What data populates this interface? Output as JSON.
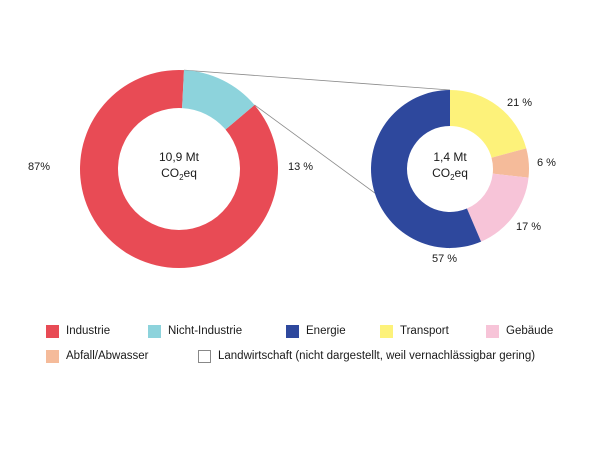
{
  "chart_data": [
    {
      "type": "pie",
      "variant": "donut",
      "center_label": {
        "line1": "10,9 Mt",
        "line2_main": "CO",
        "line2_sub": "2",
        "line2_tail": "eq"
      },
      "slices": [
        {
          "name": "Industrie",
          "value": 87,
          "label": "87%",
          "color": "#e84b55"
        },
        {
          "name": "Nicht-Industrie",
          "value": 13,
          "label": "13 %",
          "color": "#8dd3dc"
        }
      ]
    },
    {
      "type": "pie",
      "variant": "donut",
      "center_label": {
        "line1": "1,4 Mt",
        "line2_main": "CO",
        "line2_sub": "2",
        "line2_tail": "eq"
      },
      "slices": [
        {
          "name": "Transport",
          "value": 21,
          "label": "21 %",
          "color": "#fdf27a"
        },
        {
          "name": "Abfall/Abwasser",
          "value": 6,
          "label": "6 %",
          "color": "#f5bb9a"
        },
        {
          "name": "Gebäude",
          "value": 17,
          "label": "17 %",
          "color": "#f7c4d8"
        },
        {
          "name": "Energie",
          "value": 57,
          "label": "57 %",
          "color": "#2e489d"
        }
      ]
    }
  ],
  "legend": {
    "rows": [
      [
        {
          "label": "Industrie",
          "color": "#e84b55"
        },
        {
          "label": "Nicht-Industrie",
          "color": "#8dd3dc"
        },
        {
          "label": "Energie",
          "color": "#2e489d"
        },
        {
          "label": "Transport",
          "color": "#fdf27a"
        },
        {
          "label": "Gebäude",
          "color": "#f7c4d8"
        }
      ],
      [
        {
          "label": "Abfall/Abwasser",
          "color": "#f5bb9a"
        },
        {
          "label": "Landwirtschaft (nicht dargestellt, weil vernachlässigbar gering)",
          "color": "#ffffff",
          "outlined": true
        }
      ]
    ]
  }
}
